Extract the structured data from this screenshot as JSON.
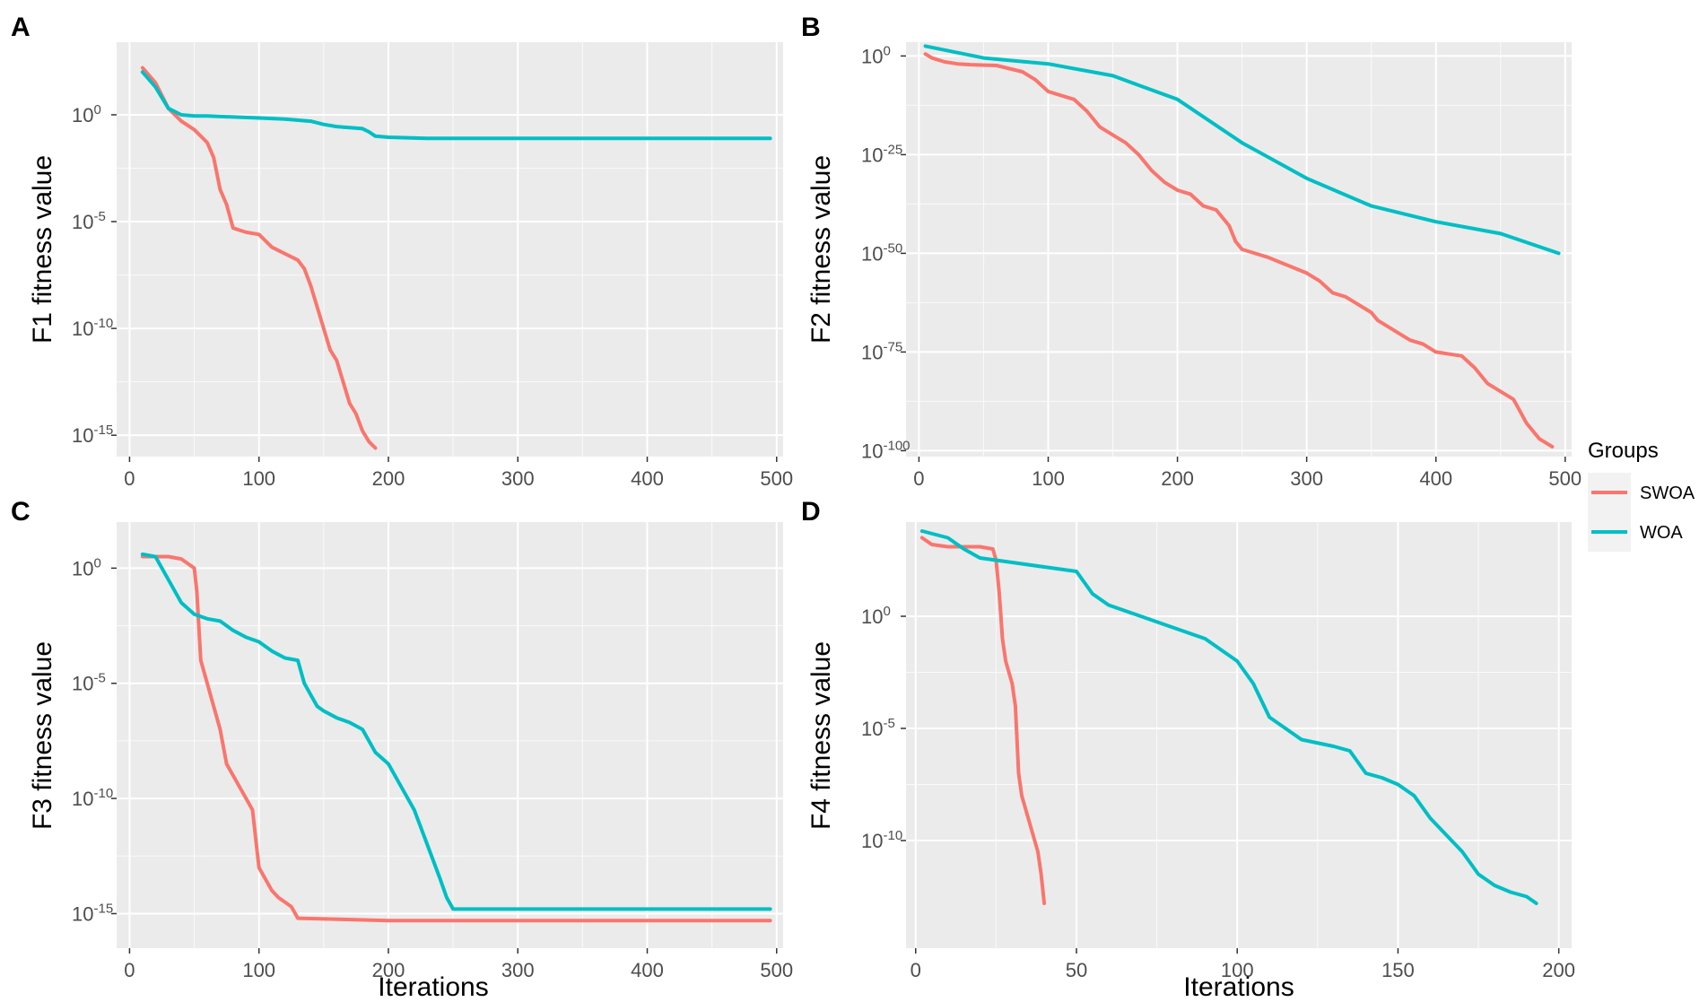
{
  "legend": {
    "title": "Groups",
    "items": [
      {
        "name": "SWOA",
        "color": "#F8766D"
      },
      {
        "name": "WOA",
        "color": "#00BFC4"
      }
    ]
  },
  "colors": {
    "SWOA": "#F8766D",
    "WOA": "#00BFC4",
    "panel_bg": "#EBEBEB",
    "grid": "#FFFFFF"
  },
  "chart_data": [
    {
      "panel": "A",
      "type": "line",
      "xlabel": "",
      "ylabel": "F1 fitness value",
      "xlim": [
        -10,
        505
      ],
      "xticks": [
        0,
        100,
        200,
        300,
        400,
        500
      ],
      "ylim": [
        -16.0,
        3.4
      ],
      "yscale": "log10",
      "yticks": [
        {
          "base": "10",
          "exp": "0",
          "value": 0
        },
        {
          "base": "10",
          "exp": "-5",
          "value": -5
        },
        {
          "base": "10",
          "exp": "-10",
          "value": -10
        },
        {
          "base": "10",
          "exp": "-15",
          "value": -15
        }
      ],
      "series": [
        {
          "name": "SWOA",
          "x": [
            10,
            20,
            30,
            40,
            50,
            60,
            65,
            70,
            75,
            80,
            85,
            90,
            100,
            110,
            120,
            130,
            135,
            140,
            145,
            150,
            155,
            160,
            165,
            170,
            175,
            180,
            185,
            190
          ],
          "y": [
            2.2,
            1.5,
            0.3,
            -0.3,
            -0.7,
            -1.3,
            -2.0,
            -3.5,
            -4.2,
            -5.3,
            -5.4,
            -5.5,
            -5.6,
            -6.2,
            -6.5,
            -6.8,
            -7.2,
            -8.0,
            -9.0,
            -10.0,
            -11.0,
            -11.5,
            -12.5,
            -13.5,
            -14.0,
            -14.8,
            -15.3,
            -15.6
          ]
        },
        {
          "name": "WOA",
          "x": [
            10,
            20,
            30,
            40,
            50,
            60,
            80,
            100,
            120,
            140,
            150,
            160,
            170,
            180,
            185,
            190,
            200,
            230,
            300,
            400,
            495
          ],
          "y": [
            2.0,
            1.3,
            0.3,
            0.0,
            -0.05,
            -0.05,
            -0.1,
            -0.15,
            -0.2,
            -0.3,
            -0.45,
            -0.55,
            -0.6,
            -0.65,
            -0.8,
            -1.0,
            -1.05,
            -1.1,
            -1.1,
            -1.1,
            -1.1
          ]
        }
      ]
    },
    {
      "panel": "B",
      "type": "line",
      "xlabel": "",
      "ylabel": "F2 fitness value",
      "xlim": [
        -10,
        505
      ],
      "xticks": [
        0,
        100,
        200,
        300,
        400,
        500
      ],
      "ylim": [
        -101.5,
        3.5
      ],
      "yscale": "log10",
      "yticks": [
        {
          "base": "10",
          "exp": "0",
          "value": 0
        },
        {
          "base": "10",
          "exp": "-25",
          "value": -25
        },
        {
          "base": "10",
          "exp": "-50",
          "value": -50
        },
        {
          "base": "10",
          "exp": "-75",
          "value": -75
        },
        {
          "base": "10",
          "exp": "-100",
          "value": -100
        }
      ],
      "series": [
        {
          "name": "SWOA",
          "x": [
            5,
            10,
            15,
            20,
            30,
            40,
            60,
            80,
            90,
            100,
            110,
            120,
            130,
            140,
            150,
            160,
            170,
            180,
            190,
            200,
            210,
            220,
            230,
            240,
            245,
            250,
            270,
            300,
            310,
            320,
            330,
            340,
            350,
            355,
            360,
            370,
            380,
            390,
            400,
            420,
            430,
            440,
            450,
            460,
            470,
            480,
            490
          ],
          "y": [
            0.5,
            -0.5,
            -1,
            -1.5,
            -2,
            -2.2,
            -2.4,
            -4,
            -6,
            -9,
            -10,
            -11,
            -14,
            -18,
            -20,
            -22,
            -25,
            -29,
            -32,
            -34,
            -35,
            -38,
            -39,
            -43,
            -47,
            -49,
            -51,
            -55,
            -57,
            -60,
            -61,
            -63,
            -65,
            -67,
            -68,
            -70,
            -72,
            -73,
            -75,
            -76,
            -79,
            -83,
            -85,
            -87,
            -93,
            -97,
            -99
          ]
        },
        {
          "name": "WOA",
          "x": [
            5,
            50,
            100,
            150,
            200,
            250,
            300,
            350,
            400,
            450,
            495
          ],
          "y": [
            2.5,
            -0.5,
            -2,
            -5,
            -11,
            -22,
            -31,
            -38,
            -42,
            -45,
            -50
          ]
        }
      ]
    },
    {
      "panel": "C",
      "type": "line",
      "xlabel": "Iterations",
      "ylabel": "F3 fitness value",
      "xlim": [
        -10,
        505
      ],
      "xticks": [
        0,
        100,
        200,
        300,
        400,
        500
      ],
      "ylim": [
        -16.5,
        2.0
      ],
      "yscale": "log10",
      "yticks": [
        {
          "base": "10",
          "exp": "0",
          "value": 0
        },
        {
          "base": "10",
          "exp": "-5",
          "value": -5
        },
        {
          "base": "10",
          "exp": "-10",
          "value": -10
        },
        {
          "base": "10",
          "exp": "-15",
          "value": -15
        }
      ],
      "series": [
        {
          "name": "SWOA",
          "x": [
            10,
            20,
            30,
            40,
            50,
            52,
            55,
            60,
            65,
            70,
            75,
            80,
            85,
            90,
            95,
            98,
            100,
            105,
            110,
            115,
            120,
            125,
            130,
            200,
            300,
            400,
            495
          ],
          "y": [
            0.5,
            0.5,
            0.5,
            0.4,
            0.0,
            -1.0,
            -4.0,
            -5.0,
            -6.0,
            -7.0,
            -8.5,
            -9.0,
            -9.5,
            -10.0,
            -10.5,
            -12.0,
            -13.0,
            -13.5,
            -14.0,
            -14.3,
            -14.5,
            -14.7,
            -15.2,
            -15.3,
            -15.3,
            -15.3,
            -15.3
          ]
        },
        {
          "name": "WOA",
          "x": [
            10,
            20,
            30,
            40,
            50,
            60,
            70,
            80,
            90,
            100,
            110,
            120,
            130,
            135,
            140,
            145,
            150,
            160,
            170,
            180,
            190,
            200,
            210,
            220,
            230,
            240,
            245,
            250,
            270,
            300,
            400,
            495
          ],
          "y": [
            0.6,
            0.5,
            -0.5,
            -1.5,
            -2.0,
            -2.2,
            -2.3,
            -2.7,
            -3.0,
            -3.2,
            -3.6,
            -3.9,
            -4.0,
            -5.0,
            -5.5,
            -6.0,
            -6.2,
            -6.5,
            -6.7,
            -7.0,
            -8.0,
            -8.5,
            -9.5,
            -10.5,
            -12.0,
            -13.5,
            -14.3,
            -14.8,
            -14.8,
            -14.8,
            -14.8,
            -14.8
          ]
        }
      ]
    },
    {
      "panel": "D",
      "type": "line",
      "xlabel": "Iterations",
      "ylabel": "F4 fitness value",
      "xlim": [
        -3,
        204
      ],
      "xticks": [
        0,
        50,
        100,
        150,
        200
      ],
      "ylim": [
        -14.8,
        4.2
      ],
      "yscale": "log10",
      "yticks": [
        {
          "base": "10",
          "exp": "0",
          "value": 0
        },
        {
          "base": "10",
          "exp": "-5",
          "value": -5
        },
        {
          "base": "10",
          "exp": "-10",
          "value": -10
        }
      ],
      "series": [
        {
          "name": "SWOA",
          "x": [
            2,
            5,
            10,
            15,
            20,
            24,
            25,
            26,
            27,
            28,
            29,
            30,
            31,
            32,
            33,
            34,
            35,
            36,
            37,
            38,
            39,
            40
          ],
          "y": [
            3.5,
            3.2,
            3.1,
            3.1,
            3.1,
            3.0,
            2.5,
            1.0,
            -1.0,
            -2.0,
            -2.5,
            -3.0,
            -4.0,
            -7.0,
            -8.0,
            -8.5,
            -9.0,
            -9.5,
            -10.0,
            -10.5,
            -11.5,
            -12.8
          ]
        },
        {
          "name": "WOA",
          "x": [
            2,
            10,
            15,
            20,
            25,
            30,
            40,
            50,
            55,
            60,
            70,
            80,
            90,
            95,
            100,
            105,
            110,
            120,
            130,
            135,
            140,
            145,
            150,
            155,
            160,
            170,
            175,
            180,
            185,
            190,
            193
          ],
          "y": [
            3.8,
            3.5,
            3.0,
            2.6,
            2.5,
            2.4,
            2.2,
            2.0,
            1.0,
            0.5,
            0.0,
            -0.5,
            -1.0,
            -1.5,
            -2.0,
            -3.0,
            -4.5,
            -5.5,
            -5.8,
            -6.0,
            -7.0,
            -7.2,
            -7.5,
            -8.0,
            -9.0,
            -10.5,
            -11.5,
            -12.0,
            -12.3,
            -12.5,
            -12.8
          ]
        }
      ]
    }
  ]
}
